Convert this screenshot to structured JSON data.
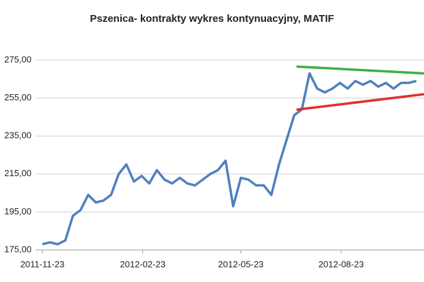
{
  "chart_data": {
    "type": "line",
    "title": "Pszenica- kontrakty wykres kontynuacyjny, MATIF",
    "x": [
      "2011-11-23",
      "2011-11-30",
      "2011-12-07",
      "2011-12-14",
      "2011-12-21",
      "2011-12-28",
      "2012-01-04",
      "2012-01-11",
      "2012-01-18",
      "2012-01-25",
      "2012-02-01",
      "2012-02-08",
      "2012-02-15",
      "2012-02-22",
      "2012-02-29",
      "2012-03-07",
      "2012-03-14",
      "2012-03-21",
      "2012-03-28",
      "2012-04-04",
      "2012-04-11",
      "2012-04-18",
      "2012-04-25",
      "2012-05-02",
      "2012-05-09",
      "2012-05-16",
      "2012-05-23",
      "2012-05-30",
      "2012-06-06",
      "2012-06-13",
      "2012-06-20",
      "2012-06-27",
      "2012-07-04",
      "2012-07-11",
      "2012-07-18",
      "2012-07-25",
      "2012-08-01",
      "2012-08-08",
      "2012-08-15",
      "2012-08-22",
      "2012-08-29",
      "2012-09-05",
      "2012-09-12",
      "2012-09-19",
      "2012-09-26",
      "2012-10-03",
      "2012-10-10",
      "2012-10-17",
      "2012-10-24",
      "2012-10-31"
    ],
    "series": [
      {
        "color": "#4f81bd",
        "values": [
          178,
          179,
          178,
          180,
          193,
          196,
          204,
          200,
          201,
          204,
          215,
          220,
          211,
          214,
          210,
          217,
          212,
          210,
          213,
          210,
          209,
          212,
          215,
          217,
          222,
          198,
          213,
          212,
          209,
          209,
          204,
          220,
          233,
          246,
          249,
          268,
          260,
          258,
          260,
          263,
          260,
          264,
          262,
          264,
          261,
          263,
          260,
          263,
          263,
          264
        ]
      }
    ],
    "trendlines": [
      {
        "color": "#3cb043",
        "x": [
          "2012-07-13",
          "2012-11-07"
        ],
        "values": [
          271.6,
          268
        ]
      },
      {
        "color": "#e0302f",
        "x": [
          "2012-07-13",
          "2012-11-07"
        ],
        "values": [
          248.9,
          257
        ]
      }
    ],
    "xlim": [
      "2011-11-23",
      "2012-11-07"
    ],
    "xticks": [
      "2011-11-23",
      "2012-02-23",
      "2012-05-23",
      "2012-08-23"
    ],
    "ylim": [
      175,
      275
    ],
    "yticks": [
      {
        "value": 175,
        "label": "175,00"
      },
      {
        "value": 195,
        "label": "195,00"
      },
      {
        "value": 215,
        "label": "215,00"
      },
      {
        "value": 235,
        "label": "235,00"
      },
      {
        "value": 255,
        "label": "255,00"
      },
      {
        "value": 275,
        "label": "275,00"
      }
    ],
    "grid": true
  }
}
